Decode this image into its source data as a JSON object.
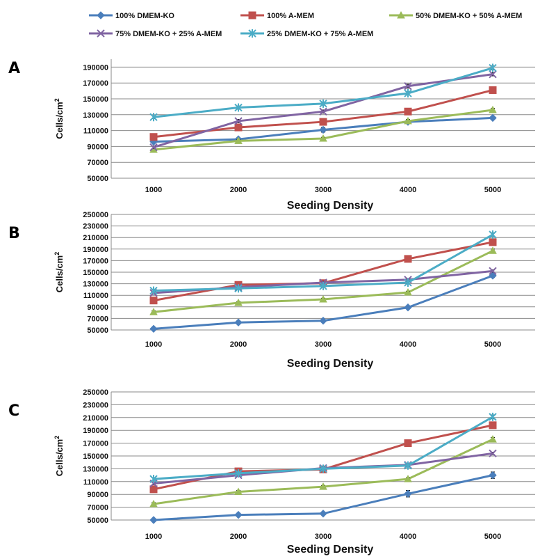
{
  "legend": [
    {
      "name": "100% DMEM-KO",
      "color": "#4a7ebb",
      "marker": "diamond"
    },
    {
      "name": "100% A-MEM",
      "color": "#c0504d",
      "marker": "square"
    },
    {
      "name": "50% DMEM-KO + 50% A-MEM",
      "color": "#9bbb59",
      "marker": "triangle"
    },
    {
      "name": "75% DMEM-KO + 25% A-MEM",
      "color": "#8064a2",
      "marker": "x"
    },
    {
      "name": "25% DMEM-KO + 75% A-MEM",
      "color": "#4bacc6",
      "marker": "star"
    }
  ],
  "chart_data": [
    {
      "type": "line",
      "panel": "A",
      "xlabel": "Seeding Density",
      "ylabel": "Cells/cm",
      "ylabel_sup": "2",
      "categories": [
        "1000",
        "2000",
        "3000",
        "4000",
        "5000"
      ],
      "ylim": [
        50000,
        200000
      ],
      "yticks": [
        50000,
        70000,
        90000,
        110000,
        130000,
        150000,
        170000,
        190000
      ],
      "grid": true,
      "legend_position": "top",
      "series": [
        {
          "name": "100% DMEM-KO",
          "values": [
            96000,
            99000,
            111000,
            121000,
            126000
          ],
          "errors": [
            2000,
            1500,
            3000,
            2000,
            2000
          ]
        },
        {
          "name": "100% A-MEM",
          "values": [
            102000,
            114000,
            121000,
            134000,
            161000
          ],
          "errors": [
            2000,
            2000,
            2000,
            2000,
            2000
          ]
        },
        {
          "name": "50% DMEM-KO + 50% A-MEM",
          "values": [
            86000,
            97000,
            100000,
            122000,
            136000
          ],
          "errors": [
            1500,
            1500,
            1500,
            2000,
            2000
          ]
        },
        {
          "name": "75% DMEM-KO + 25% A-MEM",
          "values": [
            89000,
            122000,
            134000,
            166000,
            181000
          ],
          "errors": [
            1500,
            2000,
            2000,
            2500,
            2000
          ]
        },
        {
          "name": "25% DMEM-KO + 75% A-MEM",
          "values": [
            127000,
            139000,
            144000,
            157000,
            189000
          ],
          "errors": [
            2000,
            2000,
            2000,
            2000,
            2500
          ]
        }
      ]
    },
    {
      "type": "line",
      "panel": "B",
      "xlabel": "Seeding Density",
      "ylabel": "Cells/cm",
      "ylabel_sup": "2",
      "categories": [
        "1000",
        "2000",
        "3000",
        "4000",
        "5000"
      ],
      "ylim": [
        50000,
        250000
      ],
      "yticks": [
        50000,
        70000,
        90000,
        110000,
        130000,
        150000,
        170000,
        190000,
        210000,
        230000,
        250000
      ],
      "grid": true,
      "legend_position": "top",
      "series": [
        {
          "name": "100% DMEM-KO",
          "values": [
            52000,
            63000,
            66000,
            89000,
            144000
          ],
          "errors": [
            2000,
            2000,
            2000,
            2000,
            3000
          ]
        },
        {
          "name": "100% A-MEM",
          "values": [
            101000,
            128000,
            131000,
            173000,
            202000
          ],
          "errors": [
            2000,
            2000,
            2000,
            2000,
            3000
          ]
        },
        {
          "name": "50% DMEM-KO + 50% A-MEM",
          "values": [
            81000,
            97000,
            103000,
            115000,
            187000
          ],
          "errors": [
            2000,
            2000,
            2000,
            2000,
            3000
          ]
        },
        {
          "name": "75% DMEM-KO + 25% A-MEM",
          "values": [
            114000,
            124000,
            132000,
            137000,
            152000
          ],
          "errors": [
            2000,
            2000,
            2000,
            2000,
            2000
          ]
        },
        {
          "name": "25% DMEM-KO + 75% A-MEM",
          "values": [
            118000,
            122000,
            126000,
            132000,
            215000
          ],
          "errors": [
            2000,
            2000,
            2000,
            2000,
            3000
          ]
        }
      ]
    },
    {
      "type": "line",
      "panel": "C",
      "xlabel": "Seeding Density",
      "ylabel": "Cells/cm",
      "ylabel_sup": "2",
      "categories": [
        "1000",
        "2000",
        "3000",
        "4000",
        "5000"
      ],
      "ylim": [
        50000,
        250000
      ],
      "yticks": [
        50000,
        70000,
        90000,
        110000,
        130000,
        150000,
        170000,
        190000,
        210000,
        230000,
        250000
      ],
      "grid": true,
      "legend_position": "top",
      "series": [
        {
          "name": "100% DMEM-KO",
          "values": [
            50000,
            58000,
            60000,
            91000,
            120000
          ],
          "errors": [
            1500,
            2000,
            2000,
            5000,
            5000
          ]
        },
        {
          "name": "100% A-MEM",
          "values": [
            98000,
            126000,
            129000,
            170000,
            198000
          ],
          "errors": [
            2000,
            2000,
            2000,
            2000,
            3000
          ]
        },
        {
          "name": "50% DMEM-KO + 50% A-MEM",
          "values": [
            75000,
            94000,
            102000,
            114000,
            176000
          ],
          "errors": [
            2000,
            2000,
            2000,
            2000,
            3000
          ]
        },
        {
          "name": "75% DMEM-KO + 25% A-MEM",
          "values": [
            107000,
            120000,
            131000,
            136000,
            154000
          ],
          "errors": [
            2000,
            2000,
            2000,
            2000,
            2000
          ]
        },
        {
          "name": "25% DMEM-KO + 75% A-MEM",
          "values": [
            114000,
            123000,
            130000,
            135000,
            211000
          ],
          "errors": [
            2000,
            2000,
            2000,
            2000,
            3000
          ]
        }
      ]
    }
  ]
}
